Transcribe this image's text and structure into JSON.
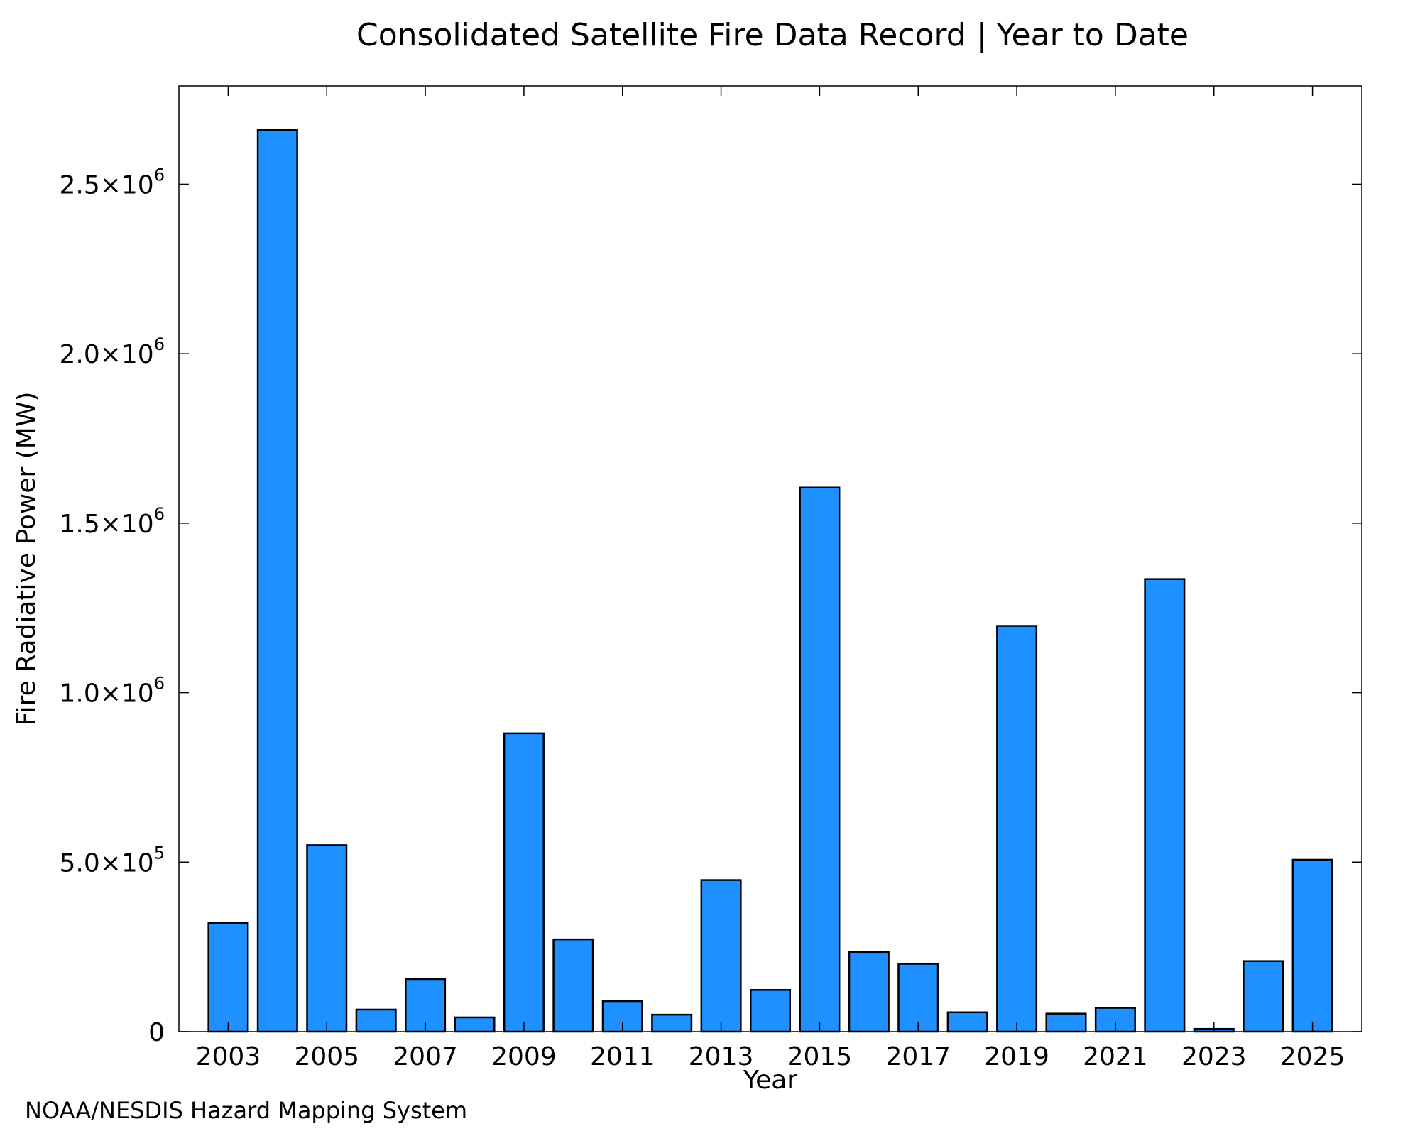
{
  "chart_data": {
    "type": "bar",
    "title": "Consolidated Satellite Fire Data Record | Year to Date",
    "xlabel": "Year",
    "ylabel": "Fire Radiative Power (MW)",
    "x": [
      2003,
      2004,
      2005,
      2006,
      2007,
      2008,
      2009,
      2010,
      2011,
      2012,
      2013,
      2014,
      2015,
      2016,
      2017,
      2018,
      2019,
      2020,
      2021,
      2022,
      2023,
      2024,
      2025
    ],
    "values": [
      320000,
      2660000,
      550000,
      65000,
      155000,
      42000,
      880000,
      272000,
      90000,
      50000,
      447000,
      123000,
      1605000,
      235000,
      200000,
      57000,
      1197000,
      53000,
      70000,
      1335000,
      8000,
      208000,
      507000
    ],
    "xlim": [
      2002,
      2026
    ],
    "ylim": [
      0,
      2790000
    ],
    "xticks": [
      2003,
      2005,
      2007,
      2009,
      2011,
      2013,
      2015,
      2017,
      2019,
      2021,
      2023,
      2025
    ],
    "yticks": [
      {
        "value": 0,
        "mantissa": "0",
        "exp": ""
      },
      {
        "value": 500000,
        "mantissa": "5.0×10",
        "exp": "5"
      },
      {
        "value": 1000000,
        "mantissa": "1.0×10",
        "exp": "6"
      },
      {
        "value": 1500000,
        "mantissa": "1.5×10",
        "exp": "6"
      },
      {
        "value": 2000000,
        "mantissa": "2.0×10",
        "exp": "6"
      },
      {
        "value": 2500000,
        "mantissa": "2.5×10",
        "exp": "6"
      }
    ],
    "bar_color": "#1e90ff",
    "bar_edge_color": "#000000",
    "grid": false,
    "legend": "none"
  },
  "footer": {
    "credit": "NOAA/NESDIS Hazard Mapping System",
    "credit_color": "#808080"
  }
}
